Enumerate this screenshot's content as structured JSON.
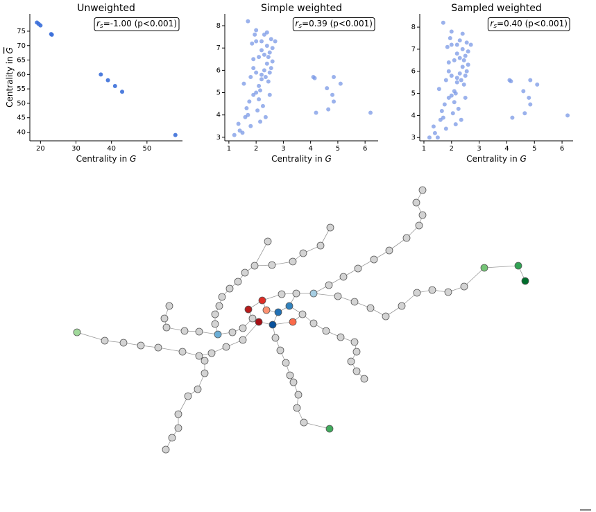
{
  "chart_data": [
    {
      "type": "scatter",
      "title": "Unweighted",
      "annotation": {
        "symbol": "r",
        "subscript": "s",
        "text": "=-1.00 (p<0.001)"
      },
      "xlabel": "Centrality in",
      "xlabel_symbol": "G",
      "ylabel": "Centrality in",
      "ylabel_symbol": "G",
      "color": "#3b6fd9",
      "x": [
        19,
        19.5,
        20,
        23,
        23.2,
        37,
        39,
        41,
        43,
        58
      ],
      "y": [
        78,
        77.5,
        77,
        74,
        73.8,
        60,
        58,
        56,
        54,
        39
      ],
      "xlim": [
        17,
        60
      ],
      "ylim": [
        37,
        81
      ],
      "xticks": [
        20,
        30,
        40,
        50
      ],
      "yticks": [
        40,
        45,
        50,
        55,
        60,
        65,
        70,
        75
      ]
    },
    {
      "type": "scatter",
      "title": "Simple weighted",
      "annotation": {
        "symbol": "r",
        "subscript": "s",
        "text": "=0.39 (p<0.001)"
      },
      "xlabel": "Centrality in",
      "xlabel_symbol": "G",
      "color": "#7a98e6",
      "x": [
        1.2,
        1.35,
        1.5,
        1.55,
        1.6,
        1.7,
        1.75,
        1.8,
        1.85,
        1.9,
        1.95,
        2.0,
        2.0,
        2.05,
        2.1,
        2.1,
        2.15,
        2.2,
        2.2,
        2.25,
        2.3,
        2.3,
        2.35,
        2.4,
        2.4,
        2.45,
        2.5,
        2.5,
        2.55,
        2.6,
        1.65,
        1.8,
        1.9,
        2.0,
        2.1,
        2.2,
        2.3,
        2.4,
        2.5,
        2.6,
        1.4,
        1.7,
        2.0,
        2.2,
        2.45,
        2.55,
        2.7,
        1.9,
        2.15,
        2.35,
        4.1,
        4.15,
        4.2,
        4.6,
        4.65,
        4.8,
        4.85,
        4.85,
        5.1,
        6.2
      ],
      "y": [
        3.1,
        3.6,
        3.2,
        5.4,
        3.9,
        8.2,
        4.6,
        3.5,
        7.2,
        6.1,
        7.6,
        5.0,
        7.8,
        4.2,
        6.6,
        5.3,
        3.7,
        6.9,
        5.8,
        4.4,
        7.6,
        6.0,
        3.9,
        6.3,
        7.1,
        5.5,
        6.8,
        4.9,
        7.4,
        6.4,
        4.3,
        5.7,
        6.5,
        7.3,
        4.7,
        5.6,
        6.7,
        7.7,
        5.9,
        7.0,
        3.3,
        4.0,
        5.9,
        7.3,
        6.6,
        6.1,
        7.3,
        4.9,
        5.1,
        5.7,
        5.7,
        5.65,
        4.1,
        5.2,
        4.25,
        4.9,
        5.7,
        4.6,
        5.4,
        4.1
      ],
      "xlim": [
        0.85,
        6.48
      ],
      "ylim": [
        2.84,
        8.53
      ],
      "xticks": [
        1,
        2,
        3,
        4,
        5,
        6
      ],
      "yticks": [
        3,
        4,
        5,
        6,
        7,
        8
      ]
    },
    {
      "type": "scatter",
      "title": "Sampled weighted",
      "annotation": {
        "symbol": "r",
        "subscript": "s",
        "text": "=0.40 (p<0.001)"
      },
      "xlabel": "Centrality in",
      "xlabel_symbol": "G",
      "color": "#7a98e6",
      "x": [
        1.2,
        1.35,
        1.5,
        1.55,
        1.6,
        1.7,
        1.75,
        1.8,
        1.85,
        1.9,
        1.95,
        2.0,
        2.0,
        2.05,
        2.1,
        2.1,
        2.15,
        2.2,
        2.2,
        2.25,
        2.3,
        2.3,
        2.35,
        2.4,
        2.4,
        2.45,
        2.5,
        2.5,
        2.55,
        2.6,
        1.65,
        1.8,
        1.9,
        2.0,
        2.1,
        2.2,
        2.3,
        2.4,
        2.5,
        2.6,
        1.4,
        1.7,
        2.0,
        2.2,
        2.45,
        2.55,
        2.7,
        1.9,
        2.15,
        2.35,
        4.1,
        4.15,
        4.2,
        4.6,
        4.65,
        4.8,
        4.85,
        4.85,
        5.1,
        6.2
      ],
      "y": [
        3.0,
        3.5,
        3.0,
        5.2,
        3.8,
        8.2,
        4.5,
        3.4,
        7.1,
        6.0,
        7.5,
        4.9,
        7.8,
        4.1,
        6.5,
        5.1,
        3.6,
        6.8,
        5.7,
        4.3,
        7.4,
        5.9,
        3.8,
        6.2,
        7.0,
        5.4,
        6.7,
        4.8,
        7.3,
        6.3,
        4.2,
        5.6,
        6.4,
        7.2,
        4.6,
        5.5,
        6.6,
        7.7,
        5.8,
        6.9,
        3.2,
        3.9,
        5.8,
        7.2,
        6.5,
        6.0,
        7.2,
        4.8,
        5.0,
        5.6,
        5.6,
        5.55,
        3.9,
        5.1,
        4.1,
        4.8,
        5.6,
        4.5,
        5.4,
        4.0
      ],
      "xlim": [
        0.85,
        6.4
      ],
      "ylim": [
        2.85,
        8.6
      ],
      "xticks": [
        1,
        2,
        3,
        4,
        5,
        6
      ],
      "yticks": [
        3,
        4,
        5,
        6,
        7,
        8
      ]
    }
  ]
}
